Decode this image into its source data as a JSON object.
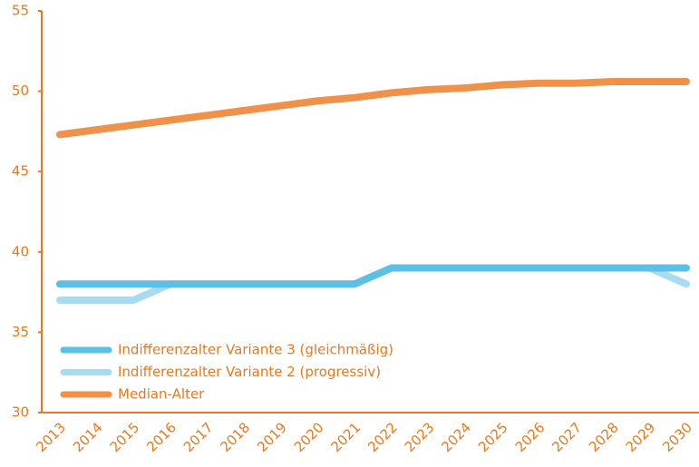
{
  "chart_data": {
    "type": "line",
    "categories": [
      "2013",
      "2014",
      "2015",
      "2016",
      "2017",
      "2018",
      "2019",
      "2020",
      "2021",
      "2022",
      "2023",
      "2024",
      "2025",
      "2026",
      "2027",
      "2028",
      "2029",
      "2030"
    ],
    "series": [
      {
        "name": "Indifferenzalter Variante 3 (gleichmäßig)",
        "color": "#5bbfe6",
        "values": [
          38,
          38,
          38,
          38,
          38,
          38,
          38,
          38,
          38,
          39,
          39,
          39,
          39,
          39,
          39,
          39,
          39,
          39
        ]
      },
      {
        "name": "Indifferenzalter Variante 2 (progressiv)",
        "color": "#a6dbf0",
        "values": [
          37,
          37,
          37,
          38,
          38,
          38,
          38,
          38,
          38,
          39,
          39,
          39,
          39,
          39,
          39,
          39,
          39,
          38
        ]
      },
      {
        "name": "Median-Alter",
        "color": "#f0914a",
        "values": [
          47.3,
          47.6,
          47.9,
          48.2,
          48.5,
          48.8,
          49.1,
          49.4,
          49.6,
          49.9,
          50.1,
          50.2,
          50.4,
          50.5,
          50.5,
          50.6,
          50.6,
          50.6
        ]
      }
    ],
    "ylim": [
      30,
      55
    ],
    "yticks": [
      30,
      35,
      40,
      45,
      50,
      55
    ],
    "legend": "lower left"
  }
}
